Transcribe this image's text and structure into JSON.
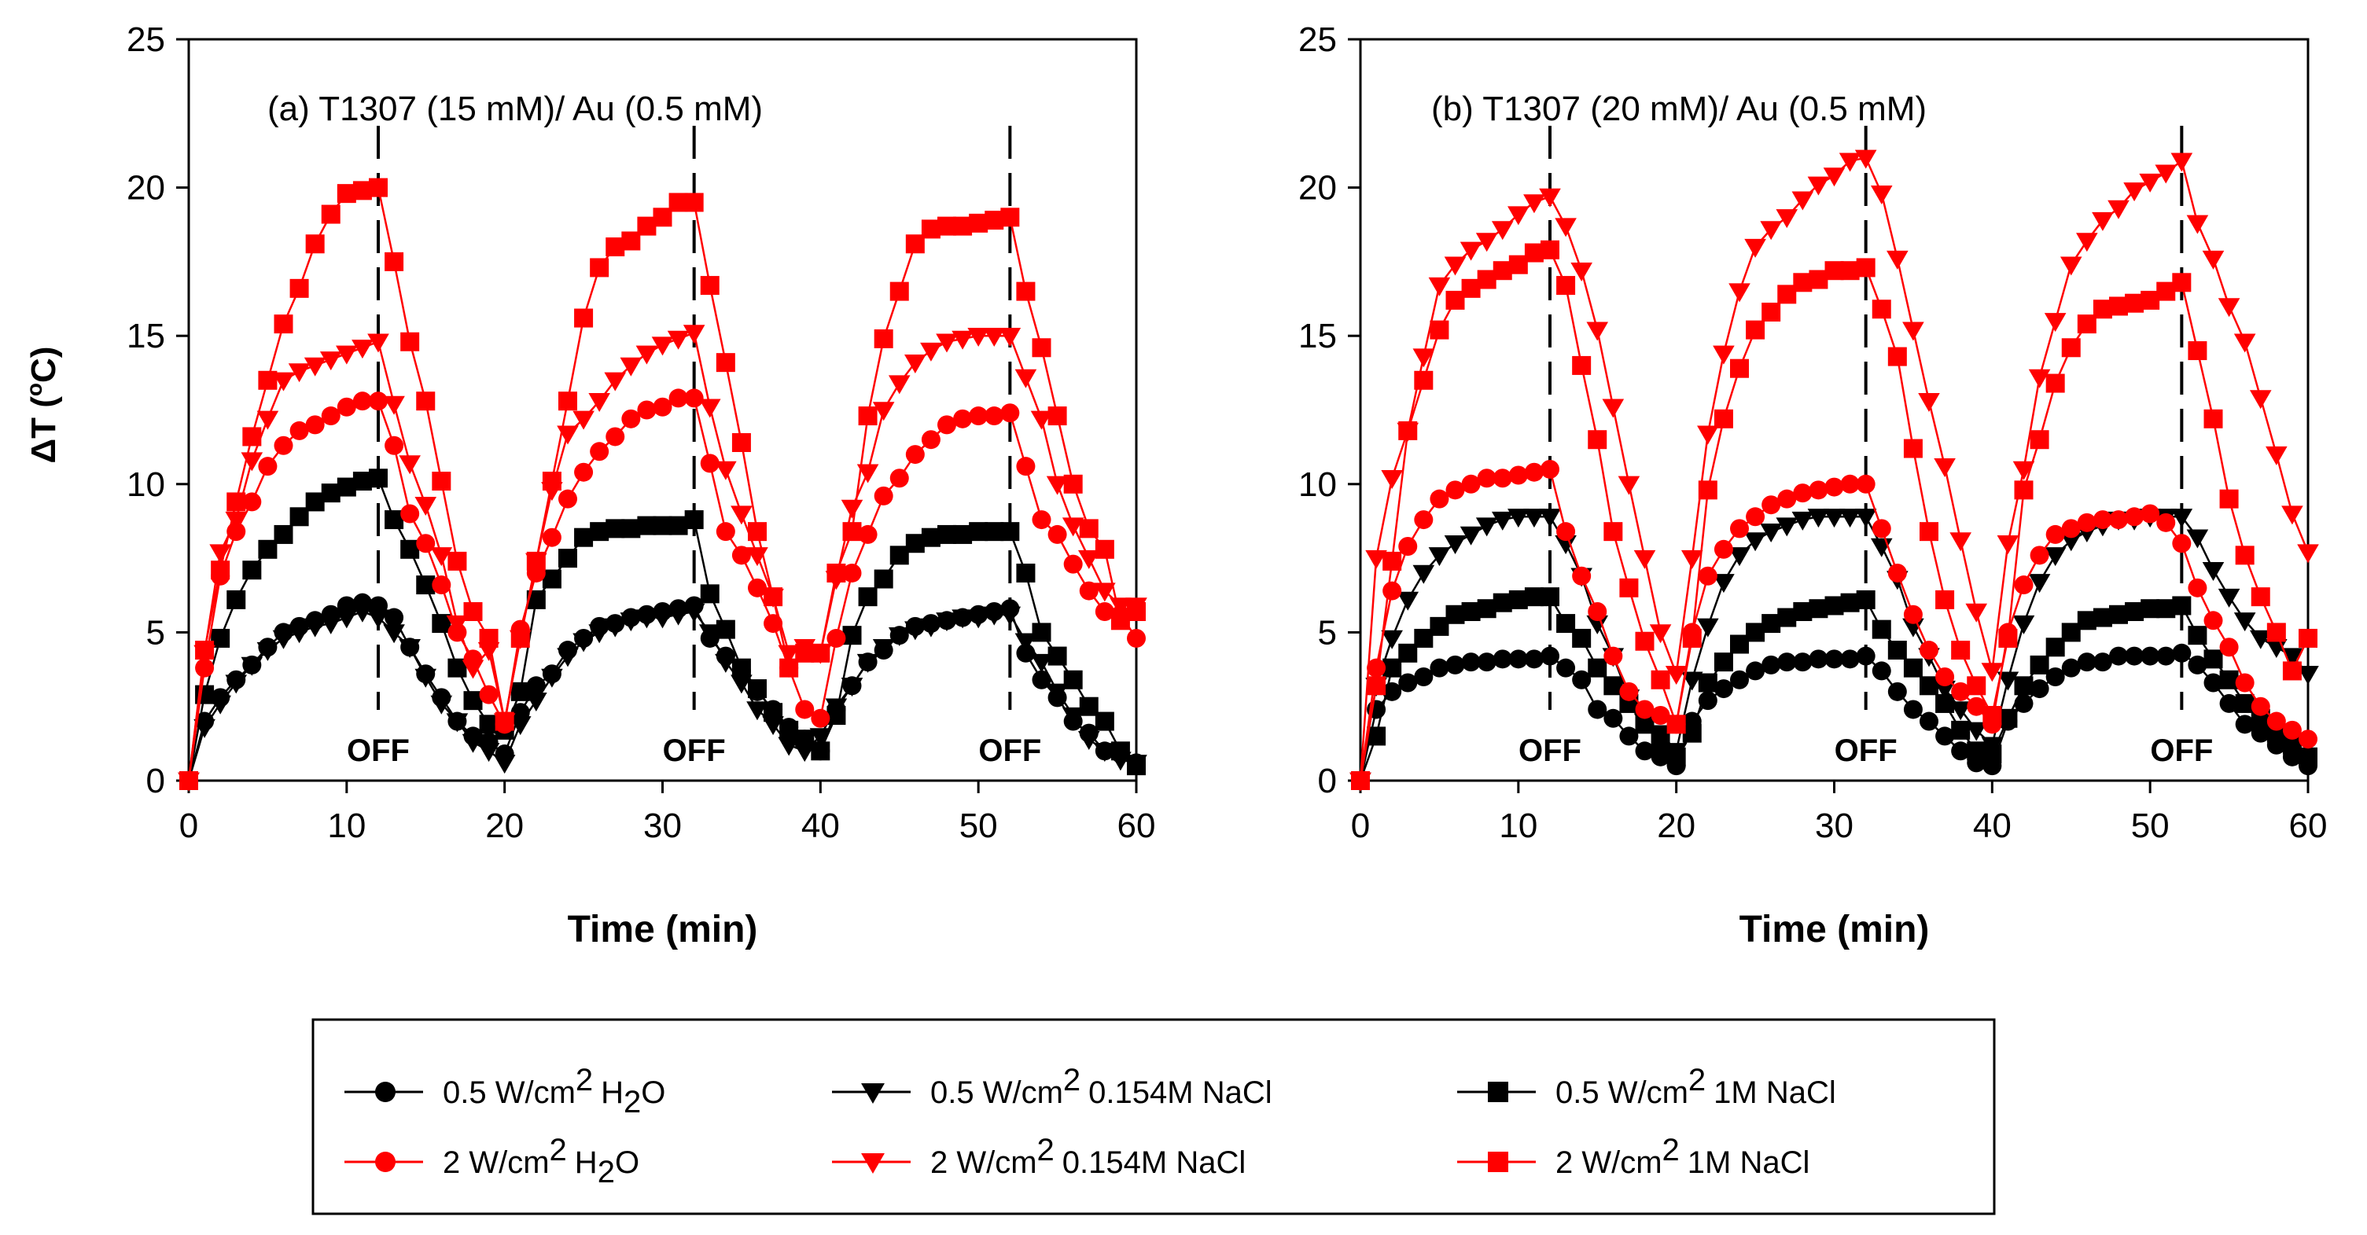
{
  "chart_data": [
    {
      "type": "line",
      "id": "a",
      "title": "(a) T1307 (15 mM)/ Au (0.5 mM)",
      "xlabel": "Time (min)",
      "ylabel": "ΔT (",
      "ylabel_sup": "o",
      "ylabel_end": "C)",
      "xlim": [
        0,
        60
      ],
      "ylim": [
        0,
        25
      ],
      "xticks": [
        0,
        10,
        20,
        30,
        40,
        50,
        60
      ],
      "yticks": [
        0,
        5,
        10,
        15,
        20,
        25
      ],
      "off_markers": [
        12,
        32,
        52
      ],
      "off_label": "OFF",
      "x": [
        0,
        1,
        2,
        3,
        4,
        5,
        6,
        7,
        8,
        9,
        10,
        11,
        12,
        13,
        14,
        15,
        16,
        17,
        18,
        19,
        20,
        21,
        22,
        23,
        24,
        25,
        26,
        27,
        28,
        29,
        30,
        31,
        32,
        33,
        34,
        35,
        36,
        37,
        38,
        39,
        40,
        41,
        42,
        43,
        44,
        45,
        46,
        47,
        48,
        49,
        50,
        51,
        52,
        53,
        54,
        55,
        56,
        57,
        58,
        59,
        60
      ],
      "series": [
        {
          "name": "0.5 W/cm2 H2O",
          "color": "#000000",
          "marker": "circle",
          "values": [
            0,
            2.0,
            2.8,
            3.4,
            3.9,
            4.5,
            5.0,
            5.2,
            5.4,
            5.6,
            5.9,
            6.0,
            5.9,
            5.5,
            4.5,
            3.6,
            2.8,
            2.0,
            1.5,
            1.3,
            0.9,
            2.3,
            3.2,
            3.6,
            4.4,
            4.8,
            5.2,
            5.3,
            5.5,
            5.6,
            5.7,
            5.8,
            5.9,
            4.8,
            4.2,
            3.7,
            3.0,
            2.4,
            1.8,
            1.4,
            1.0,
            2.4,
            3.2,
            4.0,
            4.4,
            4.9,
            5.2,
            5.3,
            5.4,
            5.5,
            5.6,
            5.7,
            5.8,
            4.3,
            3.4,
            2.8,
            2.0,
            1.6,
            1.0,
            0.9,
            0.6
          ]
        },
        {
          "name": "0.5 W/cm2 0.154M NaCl",
          "color": "#000000",
          "marker": "triangle-down",
          "values": [
            0,
            1.8,
            2.6,
            3.3,
            3.9,
            4.4,
            4.8,
            5.0,
            5.2,
            5.3,
            5.5,
            5.7,
            5.5,
            5.0,
            4.5,
            3.5,
            2.6,
            2.0,
            1.3,
            1.0,
            0.6,
            1.9,
            2.7,
            3.5,
            4.2,
            4.7,
            5.0,
            5.2,
            5.4,
            5.5,
            5.5,
            5.6,
            5.7,
            5.0,
            4.0,
            3.3,
            2.4,
            1.9,
            1.2,
            1.0,
            1.5,
            2.5,
            3.2,
            4.0,
            4.5,
            4.9,
            5.1,
            5.2,
            5.4,
            5.5,
            5.5,
            5.6,
            5.6,
            4.7,
            4.0,
            3.0,
            2.2,
            1.4,
            1.0,
            0.7,
            0.6
          ]
        },
        {
          "name": "0.5 W/cm2 1M NaCl",
          "color": "#000000",
          "marker": "square",
          "values": [
            0,
            2.9,
            4.8,
            6.1,
            7.1,
            7.8,
            8.3,
            8.9,
            9.4,
            9.7,
            9.9,
            10.1,
            10.2,
            8.8,
            7.8,
            6.6,
            5.3,
            3.8,
            2.7,
            1.9,
            1.7,
            3.0,
            6.1,
            6.8,
            7.5,
            8.2,
            8.4,
            8.5,
            8.5,
            8.6,
            8.6,
            8.6,
            8.8,
            6.3,
            5.1,
            3.8,
            3.1,
            2.3,
            1.7,
            1.4,
            1.0,
            2.2,
            4.9,
            6.2,
            6.8,
            7.6,
            8.0,
            8.2,
            8.3,
            8.3,
            8.4,
            8.4,
            8.4,
            7.0,
            5.0,
            4.2,
            3.4,
            2.5,
            2.0,
            1.0,
            0.5
          ]
        },
        {
          "name": "2 W/cm2 H2O",
          "color": "#ff0000",
          "marker": "circle",
          "values": [
            0,
            3.8,
            6.9,
            8.4,
            9.4,
            10.6,
            11.3,
            11.8,
            12.0,
            12.3,
            12.6,
            12.8,
            12.8,
            11.3,
            9.0,
            8.0,
            6.6,
            5.0,
            4.1,
            2.9,
            1.9,
            5.1,
            7.0,
            8.2,
            9.5,
            10.4,
            11.1,
            11.6,
            12.2,
            12.5,
            12.6,
            12.9,
            12.9,
            10.7,
            8.4,
            7.6,
            6.5,
            5.3,
            3.8,
            2.4,
            2.1,
            4.8,
            7.0,
            8.3,
            9.6,
            10.2,
            11.0,
            11.5,
            12.0,
            12.2,
            12.3,
            12.3,
            12.4,
            10.6,
            8.8,
            8.3,
            7.3,
            6.4,
            5.7,
            5.6,
            4.8
          ]
        },
        {
          "name": "2 W/cm2 0.154M NaCl",
          "color": "#ff0000",
          "marker": "triangle-down",
          "values": [
            0,
            4.3,
            7.7,
            8.8,
            10.8,
            12.2,
            13.5,
            13.8,
            14.0,
            14.2,
            14.4,
            14.6,
            14.8,
            12.7,
            10.7,
            9.3,
            7.6,
            5.3,
            3.8,
            4.4,
            2.0,
            4.8,
            7.4,
            9.8,
            11.7,
            12.2,
            12.8,
            13.5,
            14.0,
            14.4,
            14.7,
            14.9,
            15.1,
            12.6,
            10.5,
            9.0,
            7.6,
            6.2,
            4.3,
            4.5,
            4.3,
            6.8,
            9.2,
            10.4,
            12.5,
            13.4,
            14.1,
            14.5,
            14.8,
            14.9,
            15.0,
            15.0,
            15.0,
            13.6,
            12.2,
            10.0,
            8.6,
            7.5,
            6.4,
            5.9,
            5.9
          ]
        },
        {
          "name": "2 W/cm2 1M NaCl",
          "color": "#ff0000",
          "marker": "square",
          "values": [
            0,
            4.4,
            7.1,
            9.4,
            11.6,
            13.5,
            15.4,
            16.6,
            18.1,
            19.1,
            19.8,
            19.9,
            20.0,
            17.5,
            14.8,
            12.8,
            10.1,
            7.4,
            5.7,
            4.8,
            2.0,
            4.8,
            7.4,
            10.1,
            12.8,
            15.6,
            17.3,
            18.0,
            18.2,
            18.7,
            19.0,
            19.5,
            19.5,
            16.7,
            14.1,
            11.4,
            8.4,
            6.2,
            3.8,
            4.3,
            4.3,
            7.0,
            8.4,
            12.3,
            14.9,
            16.5,
            18.1,
            18.6,
            18.7,
            18.7,
            18.8,
            18.9,
            19.0,
            16.5,
            14.6,
            12.3,
            10.0,
            8.5,
            7.8,
            5.4,
            5.7
          ]
        }
      ]
    },
    {
      "type": "line",
      "id": "b",
      "title": "(b) T1307 (20 mM)/ Au (0.5 mM)",
      "xlabel": "Time (min)",
      "xlim": [
        0,
        60
      ],
      "ylim": [
        0,
        25
      ],
      "xticks": [
        0,
        10,
        20,
        30,
        40,
        50,
        60
      ],
      "yticks": [
        0,
        5,
        10,
        15,
        20,
        25
      ],
      "off_markers": [
        12,
        32,
        52
      ],
      "off_label": "OFF",
      "x": [
        0,
        1,
        2,
        3,
        4,
        5,
        6,
        7,
        8,
        9,
        10,
        11,
        12,
        13,
        14,
        15,
        16,
        17,
        18,
        19,
        20,
        21,
        22,
        23,
        24,
        25,
        26,
        27,
        28,
        29,
        30,
        31,
        32,
        33,
        34,
        35,
        36,
        37,
        38,
        39,
        40,
        41,
        42,
        43,
        44,
        45,
        46,
        47,
        48,
        49,
        50,
        51,
        52,
        53,
        54,
        55,
        56,
        57,
        58,
        59,
        60
      ],
      "series": [
        {
          "name": "0.5 W/cm2 H2O",
          "color": "#000000",
          "marker": "circle",
          "values": [
            0,
            2.4,
            3.0,
            3.3,
            3.5,
            3.8,
            3.9,
            4.0,
            4.0,
            4.1,
            4.1,
            4.1,
            4.2,
            3.8,
            3.4,
            2.4,
            2.1,
            1.5,
            1.0,
            0.8,
            0.5,
            2.0,
            2.7,
            3.1,
            3.4,
            3.7,
            3.9,
            4.0,
            4.0,
            4.1,
            4.1,
            4.1,
            4.2,
            3.7,
            3.0,
            2.4,
            2.0,
            1.5,
            1.0,
            0.6,
            0.5,
            2.0,
            2.6,
            3.1,
            3.5,
            3.8,
            4.0,
            4.0,
            4.2,
            4.2,
            4.2,
            4.2,
            4.3,
            3.9,
            3.3,
            2.6,
            1.9,
            1.6,
            1.2,
            0.8,
            0.5
          ]
        },
        {
          "name": "0.5 W/cm2 0.154M NaCl",
          "color": "#000000",
          "marker": "triangle-down",
          "values": [
            0,
            3.2,
            4.8,
            6.1,
            7.0,
            7.6,
            8.0,
            8.3,
            8.6,
            8.8,
            8.9,
            8.9,
            8.9,
            8.0,
            6.9,
            5.3,
            4.2,
            2.8,
            2.0,
            1.6,
            1.0,
            3.4,
            5.2,
            6.7,
            7.6,
            8.1,
            8.4,
            8.6,
            8.8,
            8.9,
            8.9,
            8.9,
            8.9,
            7.9,
            6.8,
            5.2,
            4.2,
            3.1,
            2.4,
            1.7,
            1.2,
            3.4,
            5.3,
            6.7,
            7.6,
            8.1,
            8.4,
            8.6,
            8.8,
            8.8,
            8.9,
            8.9,
            8.9,
            8.2,
            7.1,
            6.2,
            5.4,
            4.8,
            4.5,
            4.2,
            3.6
          ]
        },
        {
          "name": "0.5 W/cm2 1M NaCl",
          "color": "#000000",
          "marker": "square",
          "values": [
            0,
            1.5,
            3.8,
            4.3,
            4.8,
            5.2,
            5.6,
            5.7,
            5.8,
            6.0,
            6.1,
            6.2,
            6.2,
            5.3,
            4.8,
            3.8,
            3.2,
            2.6,
            1.9,
            1.3,
            0.8,
            1.6,
            3.3,
            4.0,
            4.6,
            5.0,
            5.3,
            5.5,
            5.7,
            5.8,
            5.9,
            6.0,
            6.1,
            5.1,
            4.4,
            3.8,
            3.2,
            2.6,
            1.7,
            1.0,
            0.9,
            2.1,
            3.2,
            3.9,
            4.5,
            5.0,
            5.4,
            5.5,
            5.6,
            5.7,
            5.8,
            5.8,
            5.9,
            4.9,
            4.1,
            3.4,
            2.6,
            2.1,
            1.6,
            1.2,
            0.8
          ]
        },
        {
          "name": "2 W/cm2 H2O",
          "color": "#ff0000",
          "marker": "circle",
          "values": [
            0,
            3.8,
            6.4,
            7.9,
            8.8,
            9.5,
            9.8,
            10.0,
            10.2,
            10.2,
            10.3,
            10.4,
            10.5,
            8.4,
            6.9,
            5.7,
            4.2,
            3.0,
            2.4,
            2.2,
            1.9,
            5.0,
            6.9,
            7.8,
            8.5,
            8.9,
            9.3,
            9.5,
            9.7,
            9.8,
            9.9,
            10.0,
            10.0,
            8.5,
            7.0,
            5.6,
            4.4,
            3.5,
            3.0,
            2.5,
            1.9,
            5.0,
            6.6,
            7.6,
            8.3,
            8.5,
            8.7,
            8.8,
            8.8,
            8.9,
            9.0,
            8.7,
            8.0,
            6.5,
            5.4,
            4.5,
            3.3,
            2.5,
            2.0,
            1.7,
            1.4
          ]
        },
        {
          "name": "2 W/cm2 0.154M NaCl",
          "color": "#ff0000",
          "marker": "triangle-down",
          "values": [
            0,
            7.5,
            10.2,
            11.8,
            14.3,
            16.7,
            17.4,
            17.9,
            18.2,
            18.6,
            19.1,
            19.5,
            19.7,
            18.7,
            17.2,
            15.2,
            12.6,
            10.0,
            7.5,
            5.0,
            3.6,
            7.5,
            11.7,
            14.4,
            16.5,
            18.0,
            18.6,
            19.0,
            19.6,
            20.1,
            20.4,
            20.9,
            21.0,
            19.8,
            17.6,
            15.2,
            12.8,
            10.6,
            8.1,
            5.7,
            3.7,
            8.0,
            10.5,
            13.6,
            15.5,
            17.4,
            18.2,
            18.9,
            19.3,
            19.9,
            20.2,
            20.5,
            20.9,
            18.8,
            17.6,
            16.0,
            14.8,
            12.9,
            11.0,
            9.0,
            7.7
          ]
        },
        {
          "name": "2 W/cm2 1M NaCl",
          "color": "#ff0000",
          "marker": "square",
          "values": [
            0,
            3.2,
            7.4,
            11.8,
            13.5,
            15.2,
            16.2,
            16.6,
            16.9,
            17.2,
            17.4,
            17.8,
            17.9,
            16.7,
            14.0,
            11.5,
            8.4,
            6.5,
            4.7,
            3.4,
            1.9,
            4.8,
            9.8,
            12.2,
            13.9,
            15.2,
            15.8,
            16.4,
            16.8,
            16.9,
            17.2,
            17.2,
            17.3,
            15.9,
            14.3,
            11.2,
            8.4,
            6.1,
            4.4,
            3.2,
            2.2,
            4.8,
            9.8,
            11.5,
            13.4,
            14.6,
            15.4,
            15.9,
            16.0,
            16.1,
            16.2,
            16.5,
            16.8,
            14.5,
            12.2,
            9.5,
            7.6,
            6.2,
            5.0,
            3.7,
            4.8
          ]
        }
      ]
    }
  ],
  "legend": {
    "items": [
      {
        "power": "0.5 W/cm",
        "power_sup": "2",
        "medium": "H",
        "medium_sub": "2",
        "medium_end": "O",
        "color": "#000000",
        "marker": "circle"
      },
      {
        "power": "0.5 W/cm",
        "power_sup": "2",
        "medium": "0.154M NaCl",
        "medium_sub": "",
        "medium_end": "",
        "color": "#000000",
        "marker": "triangle-down"
      },
      {
        "power": "0.5 W/cm",
        "power_sup": "2",
        "medium": "1M NaCl",
        "medium_sub": "",
        "medium_end": "",
        "color": "#000000",
        "marker": "square"
      },
      {
        "power": "2 W/cm",
        "power_sup": "2",
        "medium": "H",
        "medium_sub": "2",
        "medium_end": "O",
        "color": "#ff0000",
        "marker": "circle"
      },
      {
        "power": "2 W/cm",
        "power_sup": "2",
        "medium": "0.154M NaCl",
        "medium_sub": "",
        "medium_end": "",
        "color": "#ff0000",
        "marker": "triangle-down"
      },
      {
        "power": "2 W/cm",
        "power_sup": "2",
        "medium": "1M NaCl",
        "medium_sub": "",
        "medium_end": "",
        "color": "#ff0000",
        "marker": "square"
      }
    ]
  }
}
